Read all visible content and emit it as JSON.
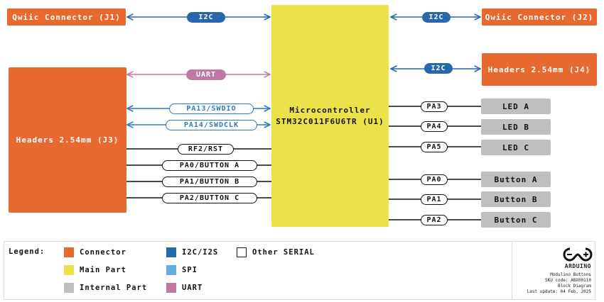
{
  "colors": {
    "connector": "#E8692F",
    "main_part": "#EBE24A",
    "internal_part": "#BFBFBF",
    "i2c": "#2767AE",
    "spi": "#62AEE3",
    "uart": "#C278A5",
    "other_serial": "#111111"
  },
  "blocks": {
    "j1": "Qwiic Connector (J1)",
    "j2": "Qwiic Connector (J2)",
    "j3": "Headers 2.54mm (J3)",
    "j4": "Headers 2.54mm (J4)",
    "mcu_line1": "Microcontroller",
    "mcu_line2": "STM32C011F6U6TR (U1)",
    "led_a": "LED A",
    "led_b": "LED B",
    "led_c": "LED C",
    "button_a": "Button A",
    "button_b": "Button B",
    "button_c": "Button C"
  },
  "signals": {
    "i2c_j1": "I2C",
    "i2c_j2": "I2C",
    "i2c_j4": "I2C",
    "uart": "UART",
    "swdio": "PA13/SWDIO",
    "swdclk": "PA14/SWDCLK",
    "rst": "RF2/RST",
    "pa0_btn": "PA0/BUTTON A",
    "pa1_btn": "PA1/BUTTON B",
    "pa2_btn": "PA2/BUTTON C",
    "pa3": "PA3",
    "pa4": "PA4",
    "pa5": "PA5",
    "pa0": "PA0",
    "pa1": "PA1",
    "pa2": "PA2"
  },
  "legend": {
    "title": "Legend:",
    "items": [
      "Connector",
      "Main Part",
      "Internal Part",
      "I2C/I2S",
      "SPI",
      "UART",
      "Other SERIAL"
    ]
  },
  "footer": {
    "logo": "ARDUINO",
    "product": "Modulino Buttons",
    "sku": "SKU code: ABX00110",
    "doc": "Block Diagram",
    "updated": "Last update: 04 Feb, 2025"
  }
}
